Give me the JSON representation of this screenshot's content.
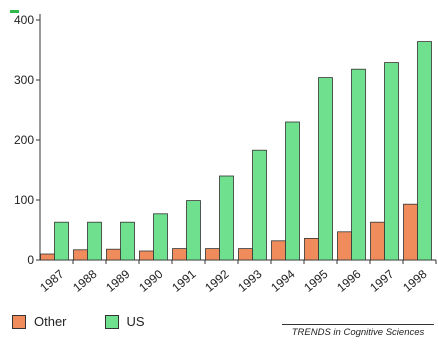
{
  "chart_data": {
    "type": "bar",
    "categories": [
      "1987",
      "1988",
      "1989",
      "1990",
      "1991",
      "1992",
      "1993",
      "1994",
      "1995",
      "1996",
      "1997",
      "1998"
    ],
    "series": [
      {
        "name": "Other",
        "color": "#f08c5c",
        "values": [
          10,
          17,
          18,
          15,
          19,
          19,
          19,
          32,
          36,
          47,
          63,
          93
        ]
      },
      {
        "name": "US",
        "color": "#6ee08e",
        "values": [
          63,
          63,
          63,
          77,
          99,
          140,
          183,
          230,
          304,
          318,
          329,
          364
        ]
      }
    ],
    "ylim": [
      0,
      400
    ],
    "yticks": [
      "0",
      "100",
      "200",
      "300",
      "400"
    ],
    "grid": false,
    "legend_position": "bottom-left",
    "credit": "TRENDS in Cognitive Sciences"
  }
}
